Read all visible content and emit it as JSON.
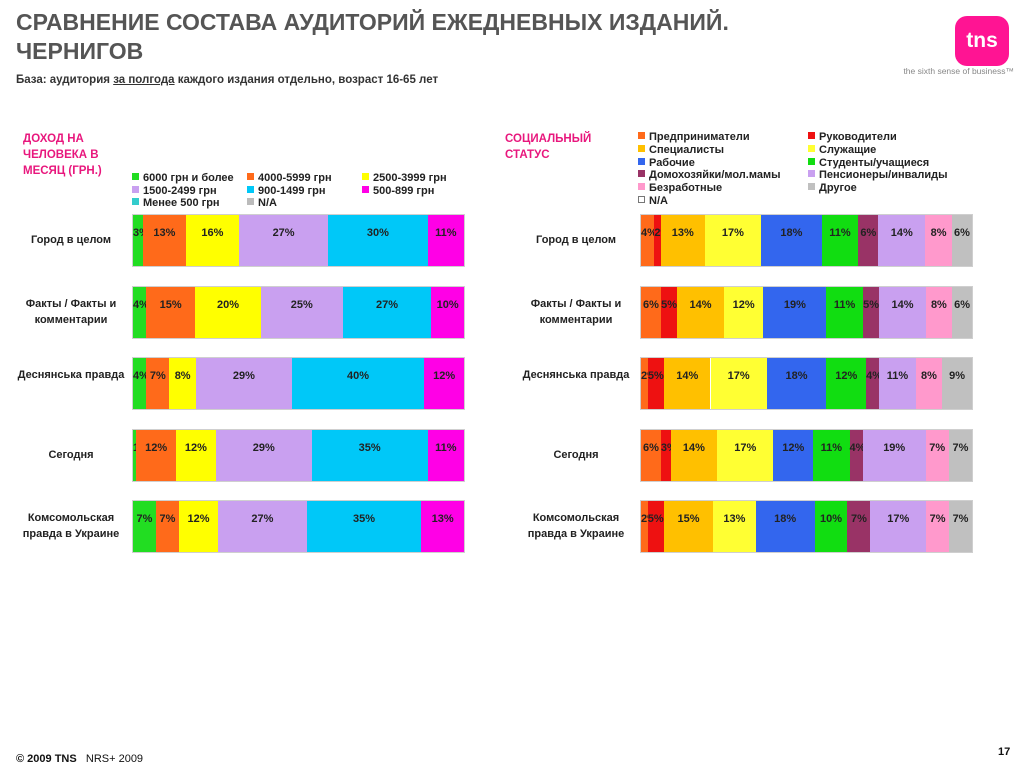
{
  "header": {
    "title_line1": "СРАВНЕНИЕ СОСТАВА АУДИТОРИЙ ЕЖЕДНЕВНЫХ ИЗДАНИЙ.",
    "title_line2": "ЧЕРНИГОВ",
    "logo_text": "tns",
    "tagline": "the sixth sense of business™"
  },
  "base": {
    "prefix": "База: аудитория",
    "underlined": "за полгода",
    "suffix": "каждого издания отдельно, возраст 16-65 лет"
  },
  "footer": {
    "copyright": "© 2009 TNS",
    "source": "NRS+ 2009",
    "page_number": "17"
  },
  "chart_data": [
    {
      "type": "bar",
      "stacked": true,
      "orientation": "horizontal",
      "title": "ДОХОД НА ЧЕЛОВЕКА В МЕСЯЦ (ГРН.)",
      "categories": [
        "Город в целом",
        "Факты / Факты и комментарии",
        "Деснянська правда",
        "Сегодня",
        "Комсомольская правда в Украине"
      ],
      "series": [
        {
          "name": "6000 грн и более",
          "color": "#22dd22",
          "values": [
            3,
            4,
            4,
            1,
            7
          ],
          "labels": [
            "3%",
            "4%",
            "4%",
            "1%",
            "7%"
          ]
        },
        {
          "name": "4000-5999 грн",
          "color": "#ff6a1a",
          "values": [
            13,
            15,
            7,
            12,
            7
          ],
          "labels": [
            "13%",
            "15%",
            "7%",
            "12%",
            "7%"
          ]
        },
        {
          "name": "2500-3999 грн",
          "color": "#ffff00",
          "values": [
            16,
            20,
            8,
            12,
            12
          ],
          "labels": [
            "16%",
            "20%",
            "8%",
            "12%",
            "12%"
          ]
        },
        {
          "name": "1500-2499 грн",
          "color": "#c9a0f0",
          "values": [
            27,
            25,
            29,
            29,
            27
          ],
          "labels": [
            "27%",
            "25%",
            "29%",
            "29%",
            "27%"
          ]
        },
        {
          "name": "900-1499 грн",
          "color": "#00c8f8",
          "values": [
            30,
            27,
            40,
            35,
            35
          ],
          "labels": [
            "30%",
            "27%",
            "40%",
            "35%",
            "35%"
          ]
        },
        {
          "name": "500-899 грн",
          "color": "#ff00e6",
          "values": [
            11,
            10,
            12,
            11,
            13
          ],
          "labels": [
            "11%",
            "10%",
            "12%",
            "11%",
            "13%"
          ]
        },
        {
          "name": "Менее 500 грн",
          "color": "#33cccc",
          "values": [
            0,
            0,
            0,
            0,
            0
          ],
          "labels": [
            "",
            "",
            "",
            "",
            ""
          ]
        },
        {
          "name": "N/A",
          "color": "#bbbbbb",
          "values": [
            0,
            0,
            0,
            0,
            0
          ],
          "labels": [
            "",
            "",
            "",
            "",
            ""
          ]
        }
      ]
    },
    {
      "type": "bar",
      "stacked": true,
      "orientation": "horizontal",
      "title": "СОЦИАЛЬНЫЙ СТАТУС",
      "categories": [
        "Город в целом",
        "Факты / Факты и комментарии",
        "Деснянська правда",
        "Сегодня",
        "Комсомольская правда в Украине"
      ],
      "series": [
        {
          "name": "Предприниматели",
          "color": "#ff6a1a",
          "values": [
            4,
            6,
            2,
            6,
            2
          ],
          "labels": [
            "4%",
            "6%",
            "2%",
            "6%",
            "2%"
          ]
        },
        {
          "name": "Руководители",
          "color": "#ee1111",
          "values": [
            2,
            5,
            5,
            3,
            5
          ],
          "labels": [
            "2%",
            "5%",
            "5%",
            "3%",
            "5%"
          ]
        },
        {
          "name": "Специалисты",
          "color": "#ffc000",
          "values": [
            13,
            14,
            14,
            14,
            15
          ],
          "labels": [
            "13%",
            "14%",
            "14%",
            "14%",
            "15%"
          ]
        },
        {
          "name": "Служащие",
          "color": "#ffff33",
          "values": [
            17,
            12,
            17,
            17,
            13
          ],
          "labels": [
            "17%",
            "12%",
            "17%",
            "17%",
            "13%"
          ]
        },
        {
          "name": "Рабочие",
          "color": "#3366ee",
          "values": [
            18,
            19,
            18,
            12,
            18
          ],
          "labels": [
            "18%",
            "19%",
            "18%",
            "12%",
            "18%"
          ]
        },
        {
          "name": "Студенты/учащиеся",
          "color": "#11dd11",
          "values": [
            11,
            11,
            12,
            11,
            10
          ],
          "labels": [
            "11%",
            "11%",
            "12%",
            "11%",
            "10%"
          ]
        },
        {
          "name": "Домохозяйки/мол.мамы",
          "color": "#993366",
          "values": [
            6,
            5,
            4,
            4,
            7
          ],
          "labels": [
            "6%",
            "5%",
            "4%",
            "4%",
            "7%"
          ]
        },
        {
          "name": "Пенсионеры/инвалиды",
          "color": "#c9a0f0",
          "values": [
            14,
            14,
            11,
            19,
            17
          ],
          "labels": [
            "14%",
            "14%",
            "11%",
            "19%",
            "17%"
          ]
        },
        {
          "name": "Безработные",
          "color": "#ff99cc",
          "values": [
            8,
            8,
            8,
            7,
            7
          ],
          "labels": [
            "8%",
            "8%",
            "8%",
            "7%",
            "7%"
          ]
        },
        {
          "name": "Другое",
          "color": "#c0c0c0",
          "values": [
            6,
            6,
            9,
            7,
            7
          ],
          "labels": [
            "6%",
            "6%",
            "9%",
            "7%",
            "7%"
          ]
        },
        {
          "name": "N/A",
          "color": "#ffffff",
          "values": [
            0,
            0,
            0,
            0,
            0
          ],
          "labels": [
            "",
            "",
            "",
            "",
            ""
          ]
        }
      ]
    }
  ]
}
